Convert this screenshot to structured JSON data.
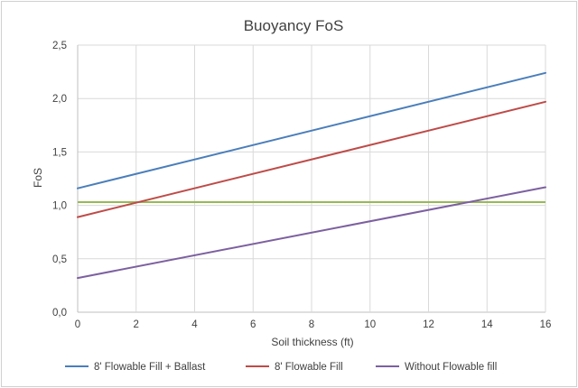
{
  "chart_data": {
    "type": "line",
    "title": "Buoyancy FoS",
    "xlabel": "Soil thickness (ft)",
    "ylabel": "FoS",
    "xlim": [
      0,
      16
    ],
    "ylim": [
      0,
      2.5
    ],
    "x_ticks": [
      0,
      2,
      4,
      6,
      8,
      10,
      12,
      14,
      16
    ],
    "x_tick_labels": [
      "0",
      "2",
      "4",
      "6",
      "8",
      "10",
      "12",
      "14",
      "16"
    ],
    "y_ticks": [
      0,
      0.5,
      1.0,
      1.5,
      2.0,
      2.5
    ],
    "y_tick_labels": [
      "0,0",
      "0,5",
      "1,0",
      "1,5",
      "2,0",
      "2,5"
    ],
    "grid": true,
    "legend_position": "bottom",
    "series": [
      {
        "name": "8' Flowable Fill + Ballast",
        "color": "#4a7ebb",
        "x": [
          0,
          16
        ],
        "y": [
          1.16,
          2.24
        ]
      },
      {
        "name": "8' Flowable Fill",
        "color": "#be4b48",
        "x": [
          0,
          16
        ],
        "y": [
          0.89,
          1.97
        ]
      },
      {
        "name": "Without Flowable fill",
        "color": "#7d60a0",
        "x": [
          0,
          16
        ],
        "y": [
          0.32,
          1.17
        ]
      }
    ],
    "reference_line": {
      "color": "#98b954",
      "y": 1.03
    }
  }
}
